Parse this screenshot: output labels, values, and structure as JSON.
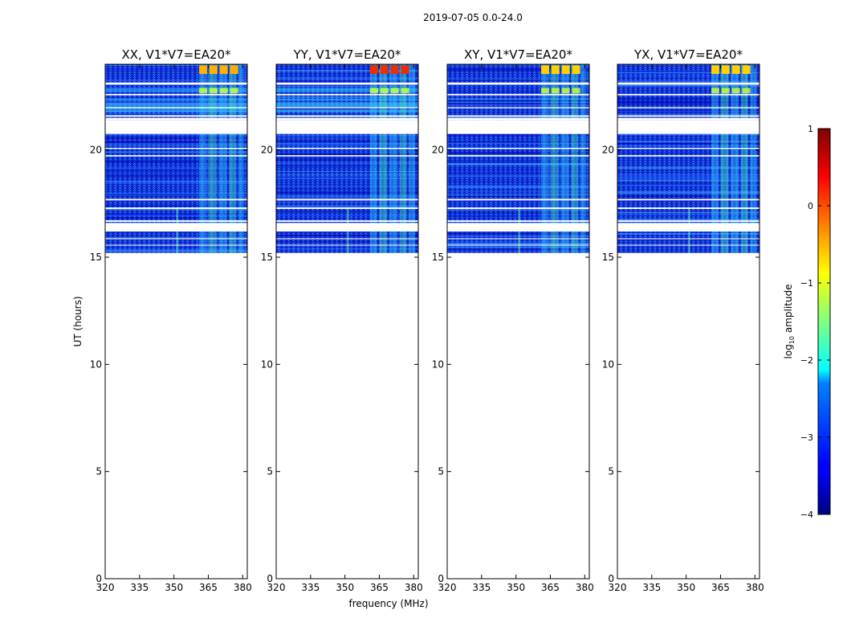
{
  "chart_data": {
    "type": "heatmap",
    "suptitle": "2019-07-05 0.0-24.0",
    "xlabel": "frequency (MHz)",
    "ylabel": "UT (hours)",
    "xlim": [
      320,
      382
    ],
    "ylim": [
      0,
      24
    ],
    "xticks": [
      320,
      335,
      350,
      365,
      380
    ],
    "yticks": [
      0,
      5,
      10,
      15,
      20
    ],
    "data_ut_range": [
      15.2,
      24.0
    ],
    "colorbar": {
      "label": "log10 amplitude",
      "label_main": "log",
      "label_sub": "10",
      "label_rest": " amplitude",
      "range": [
        -4,
        1
      ],
      "ticks": [
        -4,
        -3,
        -2,
        -1,
        0,
        1
      ],
      "tick_labels": [
        "−4",
        "−3",
        "−2",
        "−1",
        "0",
        "1"
      ],
      "colormap": "jet"
    },
    "panels": [
      {
        "title": "XX, V1*V7=EA20*",
        "pol": "XX"
      },
      {
        "title": "YY, V1*V7=EA20*",
        "pol": "YY"
      },
      {
        "title": "XY, V1*V7=EA20*",
        "pol": "XY"
      },
      {
        "title": "YX, V1*V7=EA20*",
        "pol": "YX"
      }
    ]
  }
}
